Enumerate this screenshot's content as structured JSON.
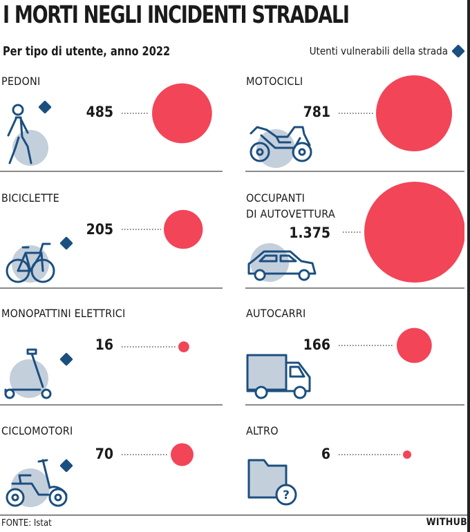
{
  "title": "I MORTI NEGLI INCIDENTI STRADALI",
  "subtitle": "Per tipo di utente, anno 2022",
  "legend": {
    "label": "Utenti vulnerabili della strada",
    "color": "#1b4f7f",
    "icon": "diamond-icon"
  },
  "colors": {
    "bubble": "#f24558",
    "icon_stroke": "#1b4f7f",
    "icon_bg": "#c4cfdc",
    "divider": "#8a8a8a"
  },
  "chart_data": {
    "type": "bubble",
    "title": "I MORTI NEGLI INCIDENTI STRADALI",
    "subtitle": "Per tipo di utente, anno 2022",
    "categories": [
      "PEDONI",
      "MOTOCICLI",
      "BICICLETTE",
      "OCCUPANTI DI AUTOVETTURA",
      "MONOPATTINI ELETTRICI",
      "AUTOCARRI",
      "CICLOMOTORI",
      "ALTRO"
    ],
    "values": [
      485,
      781,
      205,
      1375,
      16,
      166,
      70,
      6
    ],
    "series": [
      {
        "category": "PEDONI",
        "value": 485,
        "display": "485",
        "vulnerable": true,
        "icon": "pedestrian-icon"
      },
      {
        "category": "MOTOCICLI",
        "value": 781,
        "display": "781",
        "vulnerable": false,
        "icon": "motorcycle-icon"
      },
      {
        "category": "BICICLETTE",
        "value": 205,
        "display": "205",
        "vulnerable": true,
        "icon": "bicycle-icon"
      },
      {
        "category": "OCCUPANTI DI AUTOVETTURA",
        "label_lines": [
          "OCCUPANTI",
          "DI AUTOVETTURA"
        ],
        "value": 1375,
        "display": "1.375",
        "vulnerable": false,
        "icon": "car-icon"
      },
      {
        "category": "MONOPATTINI ELETTRICI",
        "value": 16,
        "display": "16",
        "vulnerable": true,
        "icon": "scooter-icon"
      },
      {
        "category": "AUTOCARRI",
        "value": 166,
        "display": "166",
        "vulnerable": false,
        "icon": "truck-icon"
      },
      {
        "category": "CICLOMOTORI",
        "value": 70,
        "display": "70",
        "vulnerable": true,
        "icon": "moped-icon"
      },
      {
        "category": "ALTRO",
        "value": 6,
        "display": "6",
        "vulnerable": false,
        "icon": "folder-question-icon"
      }
    ]
  },
  "footer": {
    "source": "FONTE: Istat",
    "brand": "WITHUB"
  }
}
